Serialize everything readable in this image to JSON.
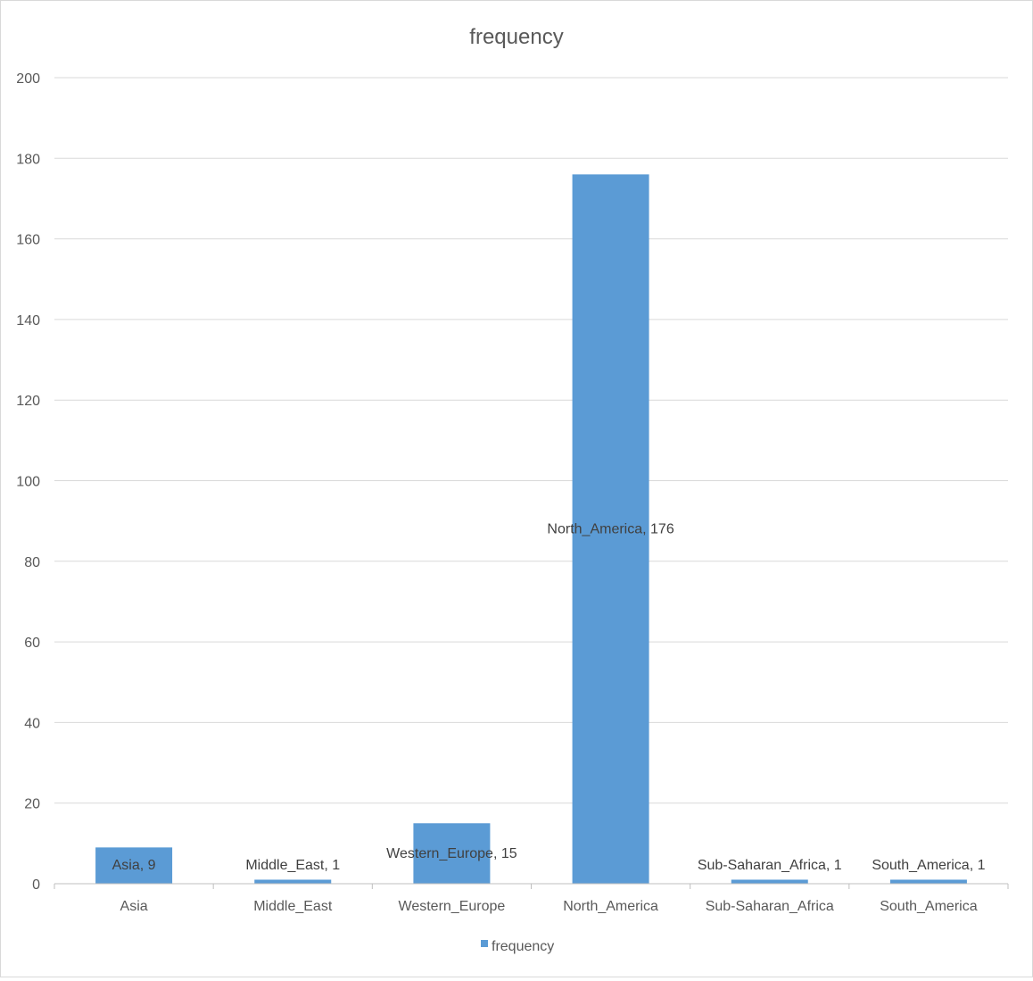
{
  "chart_data": {
    "type": "bar",
    "title": "frequency",
    "categories": [
      "Asia",
      "Middle_East",
      "Western_Europe",
      "North_America",
      "Sub-Saharan_Africa",
      "South_America"
    ],
    "series": [
      {
        "name": "frequency",
        "values": [
          9,
          1,
          15,
          176,
          1,
          1
        ],
        "data_labels": [
          "Asia, 9",
          "Middle_East, 1",
          "Western_Europe, 15",
          "North_America, 176",
          "Sub-Saharan_Africa, 1",
          "South_America, 1"
        ]
      }
    ],
    "ylim": [
      0,
      200
    ],
    "yticks": [
      0,
      20,
      40,
      60,
      80,
      100,
      120,
      140,
      160,
      180,
      200
    ],
    "grid": true,
    "legend_position": "bottom",
    "colors": {
      "bar": "#5b9bd5",
      "grid": "#d9d9d9",
      "axis": "#bfbfbf",
      "text": "#595959"
    }
  }
}
